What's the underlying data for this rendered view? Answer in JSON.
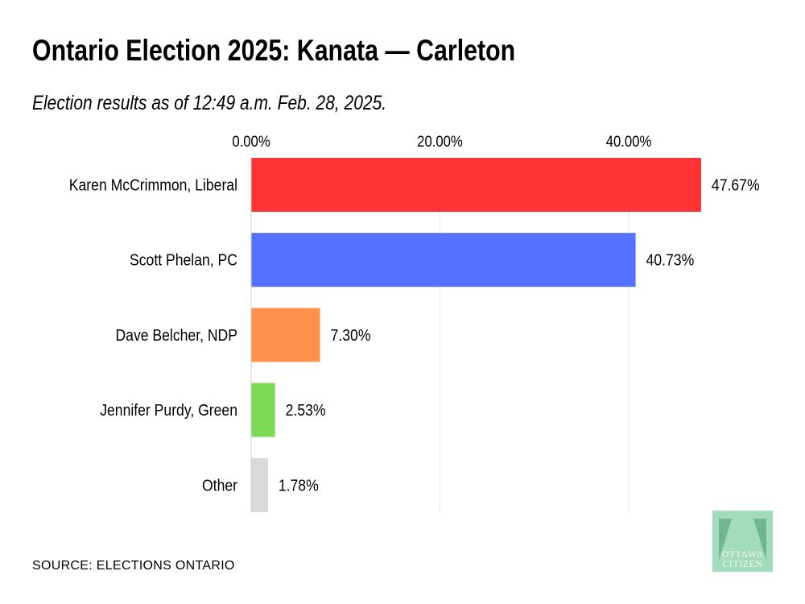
{
  "title": "Ontario Election 2025: Kanata — Carleton",
  "subtitle": "Election results as of 12:49 a.m. Feb. 28, 2025.",
  "source": "SOURCE: ELECTIONS ONTARIO",
  "logo": {
    "text_line1": "OTTAWA",
    "text_line2": "CITIZEN",
    "color": "#a3dcbc"
  },
  "chart_data": {
    "type": "bar",
    "orientation": "horizontal",
    "categories": [
      "Karen McCrimmon, Liberal",
      "Scott Phelan, PC",
      "Dave Belcher, NDP",
      "Jennifer Purdy, Green",
      "Other"
    ],
    "values": [
      47.67,
      40.73,
      7.3,
      2.53,
      1.78
    ],
    "data_labels": [
      "47.67%",
      "40.73%",
      "7.30%",
      "2.53%",
      "1.78%"
    ],
    "colors": [
      "#ff3333",
      "#5571ff",
      "#ff914d",
      "#7ed957",
      "#d9d9d9"
    ],
    "x_ticks": [
      0,
      20,
      40
    ],
    "x_tick_labels": [
      "0.00%",
      "20.00%",
      "40.00%"
    ],
    "xlim": [
      0,
      50
    ],
    "x_axis_position": "top",
    "grid": true,
    "xlabel": "",
    "ylabel": ""
  }
}
